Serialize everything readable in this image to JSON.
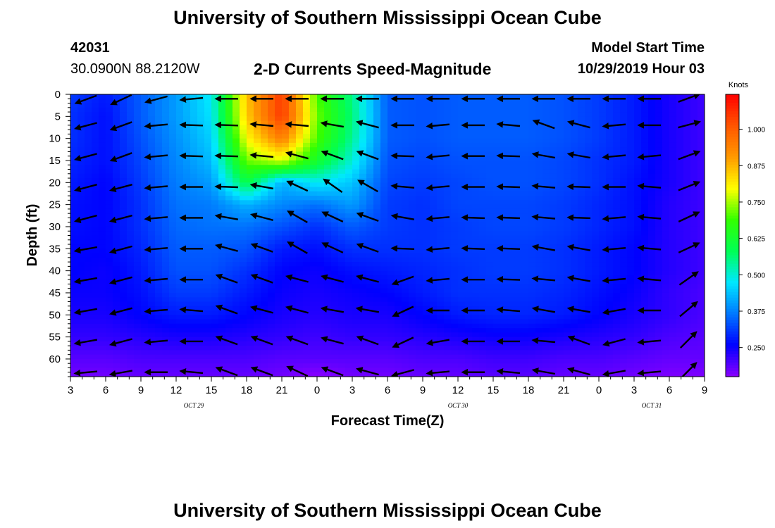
{
  "header": {
    "title": "University of Southern Mississippi Ocean Cube",
    "station_id": "42031",
    "station_location": "30.0900N 88.2120W",
    "plot_title": "2-D Currents Speed-Magnitude",
    "model_start_label": "Model Start Time",
    "model_start_value": "10/29/2019 Hour 03"
  },
  "footer": {
    "title": "University of Southern Mississippi Ocean Cube"
  },
  "chart_data": {
    "type": "heatmap",
    "title": "2-D Currents Speed-Magnitude",
    "xlabel": "Forecast Time(Z)",
    "ylabel": "Depth (ft)",
    "x_tick_labels": [
      "3",
      "6",
      "9",
      "12",
      "15",
      "18",
      "21",
      "0",
      "3",
      "6",
      "9",
      "12",
      "15",
      "18",
      "21",
      "0",
      "3",
      "6",
      "9"
    ],
    "date_labels": [
      {
        "label": "OCT 29",
        "at_tick": 3.5
      },
      {
        "label": "OCT 30",
        "at_tick": 11
      },
      {
        "label": "OCT 31",
        "at_tick": 16.5
      }
    ],
    "y_ticks": [
      0,
      5,
      10,
      15,
      20,
      25,
      30,
      35,
      40,
      45,
      50,
      55,
      60
    ],
    "ylim": [
      0,
      64
    ],
    "y_inverted": true,
    "colorbar": {
      "title": "Knots",
      "ticks": [
        0.25,
        0.375,
        0.5,
        0.625,
        0.75,
        0.875,
        1.0
      ],
      "tick_labels": [
        "0.250",
        "0.375",
        "0.500",
        "0.625",
        "0.750",
        "0.875",
        "1.000"
      ],
      "range": [
        0.15,
        1.12
      ],
      "colors": [
        "#8a00ff",
        "#0000ff",
        "#0078ff",
        "#00e8ff",
        "#00ff55",
        "#33ff00",
        "#ffff00",
        "#ff9900",
        "#ff5500",
        "#ff0000"
      ]
    },
    "speed_grid": {
      "x_index": [
        0,
        1,
        2,
        3,
        4,
        5,
        6,
        7,
        8,
        9,
        10,
        11,
        12,
        13,
        14,
        15,
        16,
        17,
        18
      ],
      "depth": [
        0,
        5,
        10,
        15,
        20,
        25,
        30,
        35,
        40,
        45,
        50,
        55,
        60,
        64
      ],
      "rows": [
        [
          0.31,
          0.28,
          0.34,
          0.4,
          0.48,
          0.86,
          1.05,
          0.7,
          0.55,
          0.34,
          0.33,
          0.34,
          0.34,
          0.34,
          0.33,
          0.31,
          0.28,
          0.24,
          0.21
        ],
        [
          0.3,
          0.27,
          0.34,
          0.4,
          0.47,
          0.85,
          1.05,
          0.72,
          0.56,
          0.34,
          0.33,
          0.34,
          0.34,
          0.34,
          0.33,
          0.31,
          0.28,
          0.24,
          0.21
        ],
        [
          0.3,
          0.27,
          0.33,
          0.39,
          0.45,
          0.8,
          0.95,
          0.7,
          0.54,
          0.34,
          0.33,
          0.34,
          0.34,
          0.34,
          0.33,
          0.31,
          0.28,
          0.24,
          0.21
        ],
        [
          0.29,
          0.27,
          0.32,
          0.38,
          0.43,
          0.72,
          0.78,
          0.63,
          0.5,
          0.33,
          0.32,
          0.33,
          0.33,
          0.33,
          0.32,
          0.3,
          0.28,
          0.24,
          0.21
        ],
        [
          0.28,
          0.26,
          0.31,
          0.37,
          0.4,
          0.6,
          0.42,
          0.48,
          0.44,
          0.32,
          0.31,
          0.32,
          0.33,
          0.33,
          0.32,
          0.3,
          0.27,
          0.24,
          0.21
        ],
        [
          0.27,
          0.26,
          0.3,
          0.36,
          0.37,
          0.42,
          0.38,
          0.36,
          0.4,
          0.31,
          0.3,
          0.32,
          0.32,
          0.32,
          0.31,
          0.29,
          0.27,
          0.23,
          0.21
        ],
        [
          0.27,
          0.26,
          0.3,
          0.35,
          0.36,
          0.36,
          0.33,
          0.3,
          0.34,
          0.31,
          0.3,
          0.31,
          0.32,
          0.32,
          0.31,
          0.29,
          0.27,
          0.23,
          0.21
        ],
        [
          0.26,
          0.26,
          0.29,
          0.34,
          0.34,
          0.33,
          0.28,
          0.27,
          0.3,
          0.3,
          0.3,
          0.31,
          0.31,
          0.31,
          0.3,
          0.28,
          0.26,
          0.23,
          0.21
        ],
        [
          0.26,
          0.25,
          0.28,
          0.33,
          0.33,
          0.3,
          0.26,
          0.25,
          0.27,
          0.28,
          0.29,
          0.3,
          0.31,
          0.31,
          0.3,
          0.28,
          0.26,
          0.23,
          0.21
        ],
        [
          0.25,
          0.25,
          0.27,
          0.31,
          0.31,
          0.28,
          0.25,
          0.24,
          0.25,
          0.26,
          0.28,
          0.3,
          0.3,
          0.3,
          0.29,
          0.27,
          0.25,
          0.22,
          0.2
        ],
        [
          0.24,
          0.24,
          0.26,
          0.28,
          0.28,
          0.26,
          0.24,
          0.23,
          0.24,
          0.24,
          0.26,
          0.28,
          0.29,
          0.29,
          0.28,
          0.26,
          0.24,
          0.22,
          0.2
        ],
        [
          0.22,
          0.22,
          0.23,
          0.24,
          0.24,
          0.23,
          0.22,
          0.21,
          0.22,
          0.22,
          0.23,
          0.24,
          0.25,
          0.25,
          0.24,
          0.23,
          0.22,
          0.2,
          0.19
        ],
        [
          0.19,
          0.19,
          0.2,
          0.2,
          0.2,
          0.2,
          0.19,
          0.19,
          0.19,
          0.19,
          0.2,
          0.2,
          0.21,
          0.21,
          0.2,
          0.2,
          0.19,
          0.18,
          0.18
        ],
        [
          0.17,
          0.17,
          0.18,
          0.18,
          0.18,
          0.18,
          0.17,
          0.15,
          0.17,
          0.17,
          0.18,
          0.18,
          0.19,
          0.19,
          0.18,
          0.18,
          0.17,
          0.16,
          0.16
        ]
      ]
    },
    "vectors": {
      "x_index": [
        0.5,
        1.5,
        2.5,
        3.5,
        4.5,
        5.5,
        6.5,
        7.5,
        8.5,
        9.5,
        10.5,
        11.5,
        12.5,
        13.5,
        14.5,
        15.5,
        16.5,
        17.5
      ],
      "depth": [
        1,
        7,
        14,
        21,
        28,
        35,
        42,
        49,
        56,
        63
      ],
      "direction_note_units": "degrees counterclockwise from +x (east)",
      "angles": [
        [
          200,
          205,
          195,
          185,
          180,
          180,
          180,
          180,
          180,
          180,
          180,
          180,
          180,
          180,
          180,
          180,
          180,
          20
        ],
        [
          195,
          200,
          185,
          178,
          178,
          175,
          175,
          170,
          165,
          180,
          185,
          180,
          175,
          160,
          165,
          185,
          180,
          15
        ],
        [
          195,
          200,
          185,
          178,
          178,
          175,
          165,
          160,
          160,
          178,
          185,
          180,
          178,
          170,
          170,
          185,
          185,
          20
        ],
        [
          195,
          195,
          185,
          180,
          178,
          170,
          155,
          145,
          150,
          175,
          185,
          180,
          178,
          175,
          178,
          180,
          175,
          22
        ],
        [
          195,
          195,
          185,
          180,
          170,
          165,
          150,
          155,
          160,
          170,
          185,
          178,
          178,
          175,
          178,
          185,
          175,
          25
        ],
        [
          190,
          195,
          185,
          180,
          165,
          160,
          150,
          155,
          160,
          178,
          185,
          178,
          178,
          170,
          170,
          185,
          175,
          25
        ],
        [
          190,
          195,
          185,
          180,
          160,
          160,
          165,
          165,
          165,
          200,
          185,
          180,
          178,
          175,
          170,
          185,
          175,
          35
        ],
        [
          190,
          195,
          185,
          175,
          160,
          165,
          165,
          170,
          170,
          205,
          180,
          180,
          175,
          170,
          170,
          190,
          180,
          40
        ],
        [
          190,
          195,
          185,
          180,
          160,
          160,
          160,
          165,
          160,
          205,
          190,
          180,
          180,
          175,
          160,
          195,
          185,
          45
        ],
        [
          185,
          190,
          180,
          175,
          160,
          160,
          155,
          160,
          165,
          195,
          185,
          180,
          175,
          170,
          165,
          190,
          185,
          45
        ]
      ],
      "speeds": [
        [
          0.31,
          0.28,
          0.34,
          0.4,
          0.48,
          0.86,
          1.05,
          0.7,
          0.55,
          0.34,
          0.33,
          0.34,
          0.34,
          0.34,
          0.33,
          0.31,
          0.28,
          0.24
        ],
        [
          0.3,
          0.27,
          0.34,
          0.4,
          0.47,
          0.85,
          1.05,
          0.72,
          0.56,
          0.34,
          0.33,
          0.34,
          0.34,
          0.34,
          0.33,
          0.31,
          0.28,
          0.24
        ],
        [
          0.29,
          0.27,
          0.32,
          0.38,
          0.43,
          0.72,
          0.78,
          0.63,
          0.5,
          0.33,
          0.32,
          0.33,
          0.33,
          0.33,
          0.32,
          0.3,
          0.28,
          0.24
        ],
        [
          0.28,
          0.26,
          0.31,
          0.37,
          0.4,
          0.6,
          0.42,
          0.48,
          0.44,
          0.32,
          0.31,
          0.32,
          0.33,
          0.33,
          0.32,
          0.3,
          0.27,
          0.24
        ],
        [
          0.27,
          0.26,
          0.3,
          0.35,
          0.36,
          0.36,
          0.33,
          0.3,
          0.34,
          0.31,
          0.3,
          0.31,
          0.32,
          0.32,
          0.31,
          0.29,
          0.27,
          0.23
        ],
        [
          0.26,
          0.26,
          0.29,
          0.34,
          0.34,
          0.33,
          0.28,
          0.27,
          0.3,
          0.3,
          0.3,
          0.31,
          0.31,
          0.31,
          0.3,
          0.28,
          0.26,
          0.23
        ],
        [
          0.25,
          0.25,
          0.27,
          0.31,
          0.31,
          0.28,
          0.25,
          0.24,
          0.25,
          0.26,
          0.28,
          0.3,
          0.3,
          0.3,
          0.29,
          0.27,
          0.25,
          0.22
        ],
        [
          0.24,
          0.24,
          0.26,
          0.28,
          0.28,
          0.26,
          0.24,
          0.23,
          0.24,
          0.24,
          0.26,
          0.28,
          0.29,
          0.29,
          0.28,
          0.26,
          0.24,
          0.22
        ],
        [
          0.21,
          0.21,
          0.22,
          0.23,
          0.23,
          0.22,
          0.21,
          0.2,
          0.21,
          0.21,
          0.22,
          0.23,
          0.24,
          0.24,
          0.23,
          0.22,
          0.21,
          0.2
        ],
        [
          0.18,
          0.18,
          0.19,
          0.19,
          0.19,
          0.19,
          0.18,
          0.17,
          0.18,
          0.18,
          0.19,
          0.19,
          0.2,
          0.2,
          0.19,
          0.19,
          0.18,
          0.17
        ]
      ]
    }
  }
}
